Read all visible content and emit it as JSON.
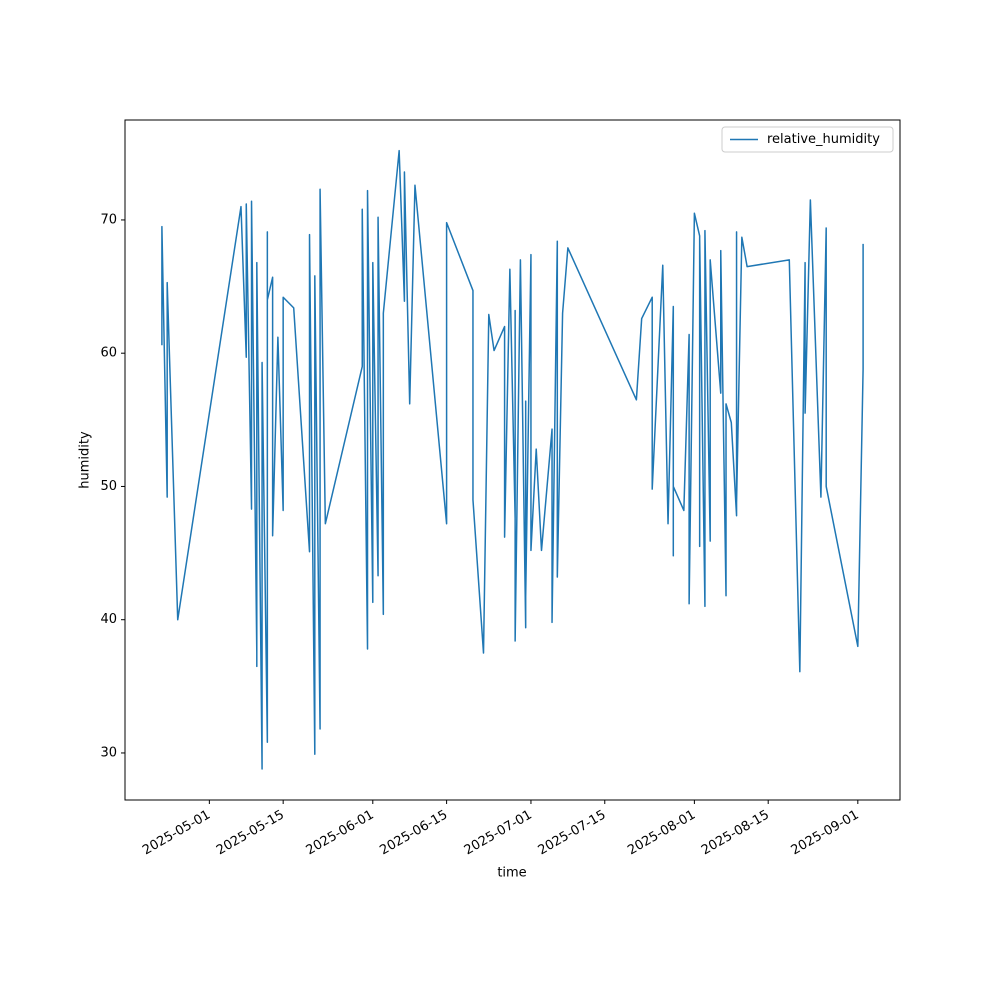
{
  "chart_data": {
    "type": "line",
    "xlabel": "time",
    "ylabel": "humidity",
    "x": [
      "2025-04-22",
      "2025-04-22",
      "2025-04-23",
      "2025-04-23",
      "2025-04-25",
      "2025-05-07",
      "2025-05-08",
      "2025-05-08",
      "2025-05-09",
      "2025-05-09",
      "2025-05-10",
      "2025-05-10",
      "2025-05-10",
      "2025-05-11",
      "2025-05-11",
      "2025-05-12",
      "2025-05-12",
      "2025-05-12",
      "2025-05-13",
      "2025-05-13",
      "2025-05-14",
      "2025-05-15",
      "2025-05-15",
      "2025-05-17",
      "2025-05-20",
      "2025-05-20",
      "2025-05-21",
      "2025-05-21",
      "2025-05-22",
      "2025-05-22",
      "2025-05-23",
      "2025-05-30",
      "2025-05-30",
      "2025-05-31",
      "2025-05-31",
      "2025-06-01",
      "2025-06-01",
      "2025-06-02",
      "2025-06-02",
      "2025-06-03",
      "2025-06-03",
      "2025-06-06",
      "2025-06-07",
      "2025-06-07",
      "2025-06-08",
      "2025-06-09",
      "2025-06-15",
      "2025-06-15",
      "2025-06-20",
      "2025-06-20",
      "2025-06-22",
      "2025-06-23",
      "2025-06-24",
      "2025-06-26",
      "2025-06-26",
      "2025-06-27",
      "2025-06-28",
      "2025-06-28",
      "2025-06-28",
      "2025-06-29",
      "2025-06-30",
      "2025-06-30",
      "2025-06-30",
      "2025-07-01",
      "2025-07-01",
      "2025-07-02",
      "2025-07-03",
      "2025-07-05",
      "2025-07-05",
      "2025-07-06",
      "2025-07-06",
      "2025-07-07",
      "2025-07-08",
      "2025-07-21",
      "2025-07-22",
      "2025-07-24",
      "2025-07-24",
      "2025-07-26",
      "2025-07-27",
      "2025-07-28",
      "2025-07-28",
      "2025-07-28",
      "2025-07-30",
      "2025-07-31",
      "2025-07-31",
      "2025-08-01",
      "2025-08-02",
      "2025-08-02",
      "2025-08-02",
      "2025-08-03",
      "2025-08-03",
      "2025-08-04",
      "2025-08-04",
      "2025-08-06",
      "2025-08-06",
      "2025-08-07",
      "2025-08-07",
      "2025-08-08",
      "2025-08-09",
      "2025-08-09",
      "2025-08-09",
      "2025-08-10",
      "2025-08-11",
      "2025-08-19",
      "2025-08-21",
      "2025-08-22",
      "2025-08-22",
      "2025-08-23",
      "2025-08-25",
      "2025-08-26",
      "2025-08-26",
      "2025-09-01",
      "2025-09-02",
      "2025-09-02"
    ],
    "series": [
      {
        "name": "relative_humidity",
        "color": "#1f77b4",
        "values": [
          60.6,
          69.5,
          49.2,
          65.3,
          40.0,
          71.0,
          59.7,
          71.2,
          48.3,
          71.4,
          37.5,
          36.5,
          66.8,
          28.8,
          59.3,
          30.8,
          69.1,
          64.0,
          65.7,
          46.3,
          61.2,
          48.2,
          64.2,
          63.4,
          45.1,
          68.9,
          29.9,
          65.8,
          31.8,
          72.3,
          47.2,
          59.0,
          70.8,
          37.8,
          72.2,
          41.3,
          66.8,
          43.3,
          70.2,
          40.4,
          63.0,
          75.2,
          63.9,
          73.6,
          56.2,
          72.6,
          47.2,
          69.8,
          64.7,
          49.0,
          37.5,
          62.9,
          60.2,
          62.0,
          46.2,
          66.3,
          47.6,
          63.2,
          38.4,
          67.0,
          39.4,
          56.4,
          41.7,
          67.4,
          45.2,
          52.8,
          45.2,
          54.3,
          39.8,
          68.4,
          43.2,
          63.0,
          67.9,
          56.5,
          62.6,
          64.2,
          49.8,
          66.6,
          47.2,
          63.5,
          44.8,
          50.0,
          48.2,
          61.4,
          41.2,
          70.5,
          68.8,
          45.5,
          68.6,
          41.0,
          69.2,
          45.9,
          67.0,
          57.0,
          67.7,
          41.8,
          56.2,
          54.8,
          47.8,
          69.1,
          48.8,
          68.7,
          66.5,
          67.0,
          36.1,
          66.8,
          55.5,
          71.5,
          49.2,
          69.4,
          50.0,
          38.0,
          58.8,
          68.2
        ]
      }
    ],
    "xlim": [
      "2025-04-15",
      "2025-09-09"
    ],
    "xticks": [
      "2025-05-01",
      "2025-05-15",
      "2025-06-01",
      "2025-06-15",
      "2025-07-01",
      "2025-07-15",
      "2025-08-01",
      "2025-08-15",
      "2025-09-01"
    ],
    "ylim": [
      26.47,
      77.5
    ],
    "yticks": [
      30,
      40,
      50,
      60,
      70
    ],
    "legend": "upper right"
  }
}
